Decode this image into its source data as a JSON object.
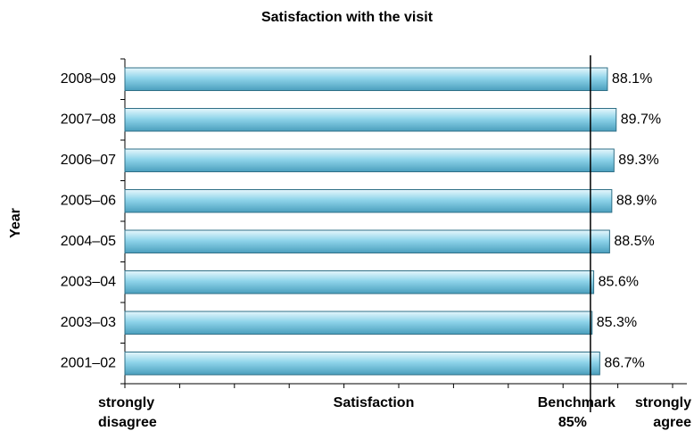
{
  "chart_data": {
    "type": "bar",
    "orientation": "horizontal",
    "title": "Satisfaction with the visit",
    "y_label": "Year",
    "x_label": "Satisfaction",
    "categories": [
      "2008–09",
      "2007–08",
      "2006–07",
      "2005–06",
      "2004–05",
      "2003–04",
      "2003–03",
      "2001–02"
    ],
    "values": [
      88.1,
      89.7,
      89.3,
      88.9,
      88.5,
      85.6,
      85.3,
      86.7
    ],
    "value_labels": [
      "88.1%",
      "89.7%",
      "89.3%",
      "88.9%",
      "88.5%",
      "85.6%",
      "85.3%",
      "86.7%"
    ],
    "color": "#8fd4ea",
    "xlim": [
      0,
      100
    ],
    "xticks": [
      0,
      10,
      20,
      30,
      40,
      50,
      60,
      70,
      80,
      90,
      100
    ],
    "benchmark": 85,
    "benchmark_label": [
      "Benchmark",
      "85%"
    ],
    "x_min_label": [
      "strongly",
      "disagree"
    ],
    "x_max_label": [
      "strongly",
      "agree"
    ]
  }
}
